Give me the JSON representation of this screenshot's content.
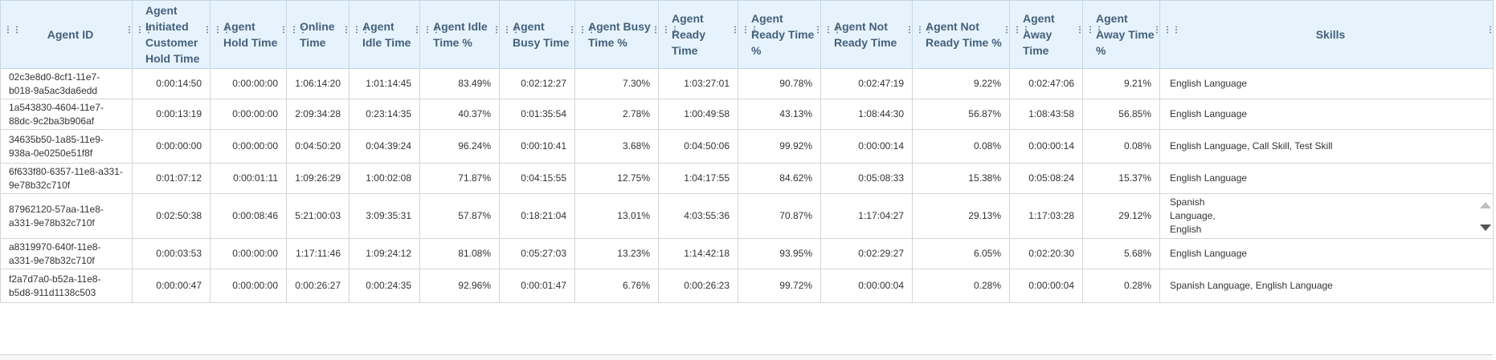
{
  "columns": [
    {
      "label": "Agent ID"
    },
    {
      "label": "Agent Initiated Customer Hold Time"
    },
    {
      "label": "Agent Hold Time"
    },
    {
      "label": "Online Time"
    },
    {
      "label": "Agent Idle Time"
    },
    {
      "label": "Agent Idle Time %"
    },
    {
      "label": "Agent Busy Time"
    },
    {
      "label": "Agent Busy Time %"
    },
    {
      "label": "Agent Ready Time"
    },
    {
      "label": "Agent Ready Time %"
    },
    {
      "label": "Agent Not Ready Time"
    },
    {
      "label": "Agent Not Ready Time %"
    },
    {
      "label": "Agent Away Time"
    },
    {
      "label": "Agent Away Time %"
    },
    {
      "label": "Skills"
    }
  ],
  "rows": [
    {
      "cells": [
        "02c3e8d0-8cf1-11e7-b018-9a5ac3da6edd",
        "0:00:14:50",
        "0:00:00:00",
        "1:06:14:20",
        "1:01:14:45",
        "83.49%",
        "0:02:12:27",
        "7.30%",
        "1:03:27:01",
        "90.78%",
        "0:02:47:19",
        "9.22%",
        "0:02:47:06",
        "9.21%",
        "English Language"
      ]
    },
    {
      "cells": [
        "1a543830-4604-11e7-88dc-9c2ba3b906af",
        "0:00:13:19",
        "0:00:00:00",
        "2:09:34:28",
        "0:23:14:35",
        "40.37%",
        "0:01:35:54",
        "2.78%",
        "1:00:49:58",
        "43.13%",
        "1:08:44:30",
        "56.87%",
        "1:08:43:58",
        "56.85%",
        "English Language"
      ]
    },
    {
      "cells": [
        "34635b50-1a85-11e9-938a-0e0250e51f8f",
        "0:00:00:00",
        "0:00:00:00",
        "0:04:50:20",
        "0:04:39:24",
        "96.24%",
        "0:00:10:41",
        "3.68%",
        "0:04:50:06",
        "99.92%",
        "0:00:00:14",
        "0.08%",
        "0:00:00:14",
        "0.08%",
        "English Language, Call Skill, Test Skill"
      ]
    },
    {
      "cells": [
        "6f633f80-6357-11e8-a331-9e78b32c710f",
        "0:01:07:12",
        "0:00:01:11",
        "1:09:26:29",
        "1:00:02:08",
        "71.87%",
        "0:04:15:55",
        "12.75%",
        "1:04:17:55",
        "84.62%",
        "0:05:08:33",
        "15.38%",
        "0:05:08:24",
        "15.37%",
        "English Language"
      ]
    },
    {
      "cells": [
        "87962120-57aa-11e8-a331-9e78b32c710f",
        "0:02:50:38",
        "0:00:08:46",
        "5:21:00:03",
        "3:09:35:31",
        "57.87%",
        "0:18:21:04",
        "13.01%",
        "4:03:55:36",
        "70.87%",
        "1:17:04:27",
        "29.13%",
        "1:17:03:28",
        "29.12%",
        "Spanish Language, English"
      ]
    },
    {
      "cells": [
        "a8319970-640f-11e8-a331-9e78b32c710f",
        "0:00:03:53",
        "0:00:00:00",
        "1:17:11:46",
        "1:09:24:12",
        "81.08%",
        "0:05:27:03",
        "13.23%",
        "1:14:42:18",
        "93.95%",
        "0:02:29:27",
        "6.05%",
        "0:02:20:30",
        "5.68%",
        "English Language"
      ]
    },
    {
      "cells": [
        "f2a7d7a0-b52a-11e8-b5d8-911d1138c503",
        "0:00:00:47",
        "0:00:00:00",
        "0:00:26:27",
        "0:00:24:35",
        "92.96%",
        "0:00:01:47",
        "6.76%",
        "0:00:26:23",
        "99.72%",
        "0:00:00:04",
        "0.28%",
        "0:00:00:04",
        "0.28%",
        "Spanish Language, English Language"
      ]
    }
  ]
}
